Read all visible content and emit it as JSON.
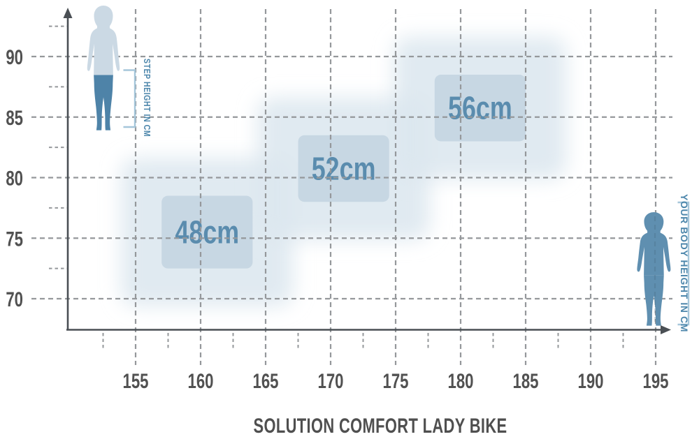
{
  "title": {
    "text": "SOLUTION COMFORT LADY BIKE",
    "color": "#4f4f4f"
  },
  "annotations": {
    "step_height_label": "STEP HEIGHT IN CM",
    "body_height_label": "YOUR BODY HEIGHT IN CM",
    "label_color": "#4c86ab",
    "bracket_color": "#a5c6da"
  },
  "figures": {
    "left": {
      "upper_color": "#cbd9e4",
      "legs_color": "#4e83a8"
    },
    "right": {
      "color": "#5f8fb0"
    }
  },
  "chart_data": {
    "type": "heatmap",
    "title": "SOLUTION COMFORT LADY BIKE",
    "xlabel": "YOUR BODY HEIGHT IN CM",
    "ylabel": "STEP HEIGHT IN CM",
    "x_ticks": [
      155,
      160,
      165,
      170,
      175,
      180,
      185,
      190,
      195
    ],
    "x_minor_ticks": [
      152.5,
      157.5,
      162.5,
      167.5,
      172.5,
      177.5,
      182.5,
      187.5,
      192.5
    ],
    "y_ticks": [
      70,
      75,
      80,
      85,
      90
    ],
    "y_minor_ticks": [
      72.5,
      77.5,
      82.5,
      87.5,
      92.5
    ],
    "xlim": [
      151.9,
      196.1
    ],
    "ylim": [
      67.4,
      93.9
    ],
    "grid": "dashed",
    "legend": "none",
    "regions": [
      {
        "label": "48cm",
        "body_height_cm": [
          157,
          164
        ],
        "step_height_cm": [
          72.5,
          78.5
        ]
      },
      {
        "label": "52cm",
        "body_height_cm": [
          167.5,
          174.5
        ],
        "step_height_cm": [
          78,
          83.5
        ]
      },
      {
        "label": "56cm",
        "body_height_cm": [
          178,
          185
        ],
        "step_height_cm": [
          83,
          88.5
        ]
      }
    ],
    "colors": {
      "region_fill": "#c7d7e3",
      "region_halo": "#dce7ef",
      "region_label": "#5a8cae",
      "grid": "#95989b",
      "axis": "#4a4f54",
      "tick_label": "#515151"
    }
  }
}
